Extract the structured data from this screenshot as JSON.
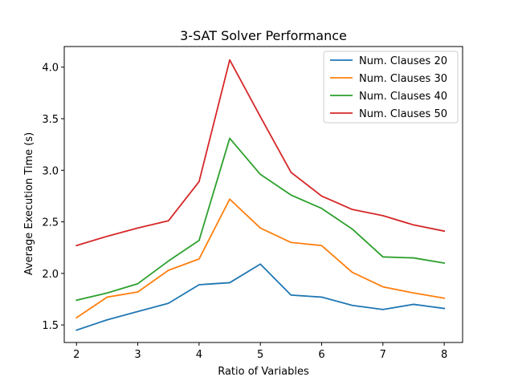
{
  "chart_data": {
    "type": "line",
    "title": "3-SAT Solver Performance",
    "xlabel": "Ratio of Variables",
    "ylabel": "Average Execution Time (s)",
    "xlim": [
      1.8,
      8.3
    ],
    "ylim": [
      1.33,
      4.2
    ],
    "xticks": [
      2,
      3,
      4,
      5,
      6,
      7,
      8
    ],
    "yticks": [
      1.5,
      2.0,
      2.5,
      3.0,
      3.5,
      4.0
    ],
    "xtick_labels": [
      "2",
      "3",
      "4",
      "5",
      "6",
      "7",
      "8"
    ],
    "ytick_labels": [
      "1.5",
      "2.0",
      "2.5",
      "3.0",
      "3.5",
      "4.0"
    ],
    "x": [
      2,
      2.5,
      3,
      3.5,
      4,
      4.5,
      5,
      5.5,
      6,
      6.5,
      7,
      7.5,
      8
    ],
    "series": [
      {
        "name": "Num. Clauses 20",
        "color": "#1f77b4",
        "values": [
          1.45,
          1.55,
          1.63,
          1.71,
          1.89,
          1.91,
          2.09,
          1.79,
          1.77,
          1.69,
          1.65,
          1.7,
          1.66
        ]
      },
      {
        "name": "Num. Clauses 30",
        "color": "#ff7f0e",
        "values": [
          1.57,
          1.77,
          1.82,
          2.03,
          2.14,
          2.72,
          2.44,
          2.3,
          2.27,
          2.01,
          1.87,
          1.81,
          1.76
        ]
      },
      {
        "name": "Num. Clauses 40",
        "color": "#2ca02c",
        "values": [
          1.74,
          1.81,
          1.9,
          2.12,
          2.32,
          3.31,
          2.96,
          2.76,
          2.63,
          2.43,
          2.16,
          2.15,
          2.1
        ]
      },
      {
        "name": "Num. Clauses 50",
        "color": "#d62728",
        "values": [
          2.27,
          2.36,
          2.44,
          2.51,
          2.89,
          4.07,
          3.52,
          2.98,
          2.75,
          2.62,
          2.56,
          2.47,
          2.41
        ]
      }
    ],
    "grid": false,
    "legend_position": "top-right"
  }
}
